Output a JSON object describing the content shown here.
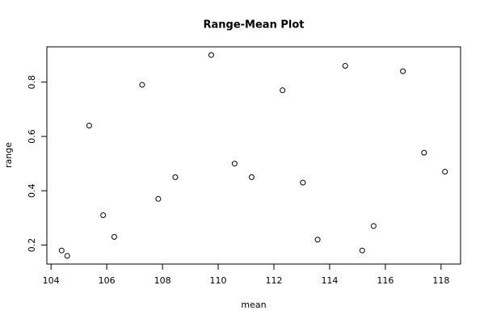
{
  "chart_data": {
    "type": "scatter",
    "title": "Range-Mean Plot",
    "x_label": "mean",
    "y_label": "range",
    "x": [
      104.38,
      104.58,
      105.37,
      105.87,
      106.27,
      107.27,
      107.85,
      108.46,
      109.75,
      110.59,
      111.2,
      112.31,
      113.04,
      113.57,
      114.56,
      115.17,
      115.58,
      116.63,
      117.39,
      118.14
    ],
    "values": [
      0.18,
      0.16,
      0.64,
      0.31,
      0.23,
      0.79,
      0.37,
      0.45,
      0.9,
      0.5,
      0.45,
      0.77,
      0.43,
      0.22,
      0.86,
      0.18,
      0.27,
      0.84,
      0.54,
      0.47
    ],
    "color": "#000000",
    "xlim": [
      103.85,
      118.7
    ],
    "ylim": [
      0.13,
      0.93
    ],
    "xticks": [
      104,
      106,
      108,
      110,
      112,
      114,
      116,
      118
    ],
    "yticks": [
      0.2,
      0.4,
      0.6,
      0.8
    ]
  }
}
